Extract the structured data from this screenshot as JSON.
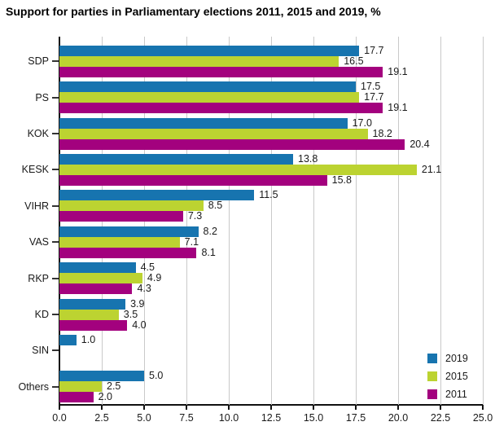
{
  "title": "Support for parties in Parliamentary elections 2011, 2015 and 2019, %",
  "chart_data": {
    "type": "bar",
    "orientation": "horizontal",
    "title": "Support for parties in Parliamentary elections 2011, 2015 and 2019, %",
    "xlabel": "",
    "ylabel": "",
    "xlim": [
      0,
      25
    ],
    "xtick_labels": [
      "0.0",
      "2.5",
      "5.0",
      "7.5",
      "10.0",
      "12.5",
      "15.0",
      "17.5",
      "20.0",
      "22.5",
      "25.0"
    ],
    "xtick_values": [
      0,
      2.5,
      5,
      7.5,
      10,
      12.5,
      15,
      17.5,
      20,
      22.5,
      25
    ],
    "grid": true,
    "value_labels": true,
    "legend_position": "bottom-right",
    "categories": [
      "SDP",
      "PS",
      "KOK",
      "KESK",
      "VIHR",
      "VAS",
      "RKP",
      "KD",
      "SIN",
      "Others"
    ],
    "series": [
      {
        "name": "2019",
        "color": "#1774af",
        "values": [
          17.7,
          17.5,
          17.0,
          13.8,
          11.5,
          8.2,
          4.5,
          3.9,
          1.0,
          5.0
        ]
      },
      {
        "name": "2015",
        "color": "#bcd331",
        "values": [
          16.5,
          17.7,
          18.2,
          21.1,
          8.5,
          7.1,
          4.9,
          3.5,
          null,
          2.5
        ]
      },
      {
        "name": "2011",
        "color": "#a3017e",
        "values": [
          19.1,
          19.1,
          20.4,
          15.8,
          7.3,
          8.1,
          4.3,
          4.0,
          null,
          2.0
        ]
      }
    ],
    "colors": {
      "gridline": "#c9c9c9",
      "axis": "#111111",
      "text": "#1a1a1a"
    }
  }
}
